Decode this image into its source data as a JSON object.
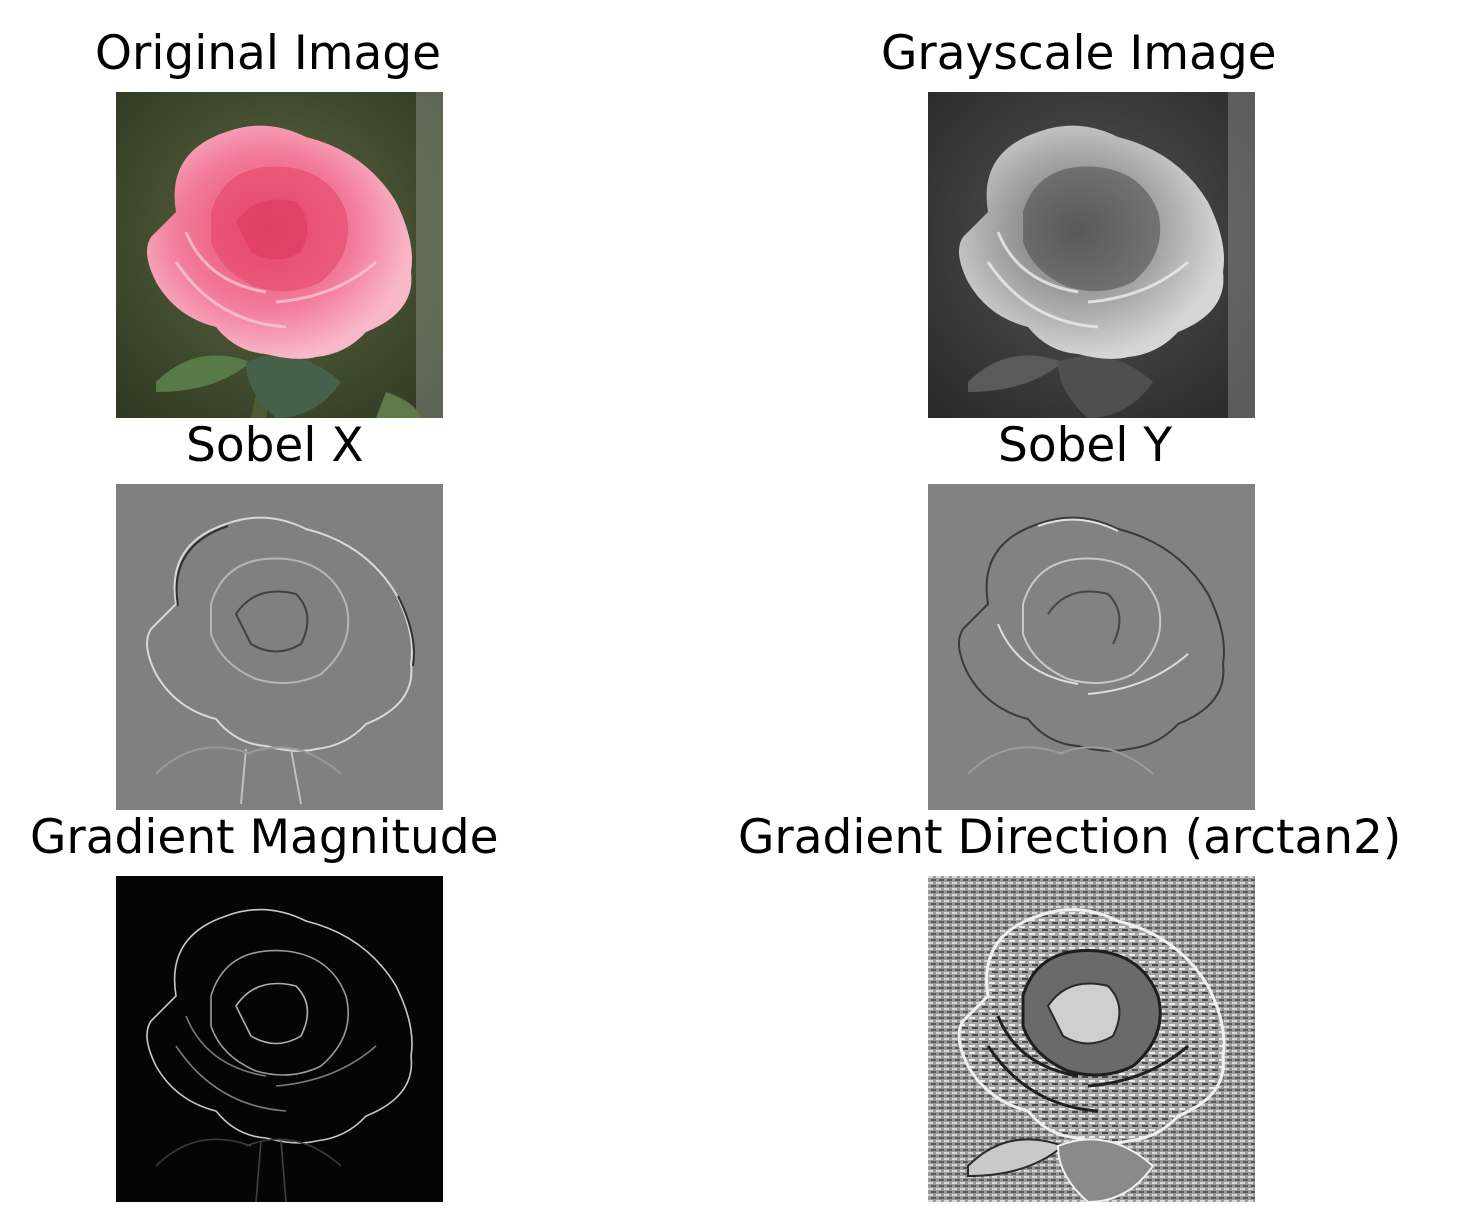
{
  "figure": {
    "panels": [
      {
        "id": "original",
        "title": "Original Image",
        "image": "pink-rose-photo"
      },
      {
        "id": "grayscale",
        "title": "Grayscale Image",
        "image": "grayscale-rose"
      },
      {
        "id": "sobel_x",
        "title": "Sobel X",
        "image": "sobel-x-edge-map"
      },
      {
        "id": "sobel_y",
        "title": "Sobel Y",
        "image": "sobel-y-edge-map"
      },
      {
        "id": "magnitude",
        "title": "Gradient Magnitude",
        "image": "gradient-magnitude-map"
      },
      {
        "id": "direction",
        "title": "Gradient Direction (arctan2)",
        "image": "gradient-direction-map"
      }
    ]
  },
  "colors": {
    "rose_pink": "#f27a9a",
    "rose_light": "#f7b7c6",
    "leaf_green": "#4d6b3e",
    "bg_green": "#3d4a2c",
    "sobel_gray": "#808080",
    "magnitude_bg": "#050505"
  }
}
